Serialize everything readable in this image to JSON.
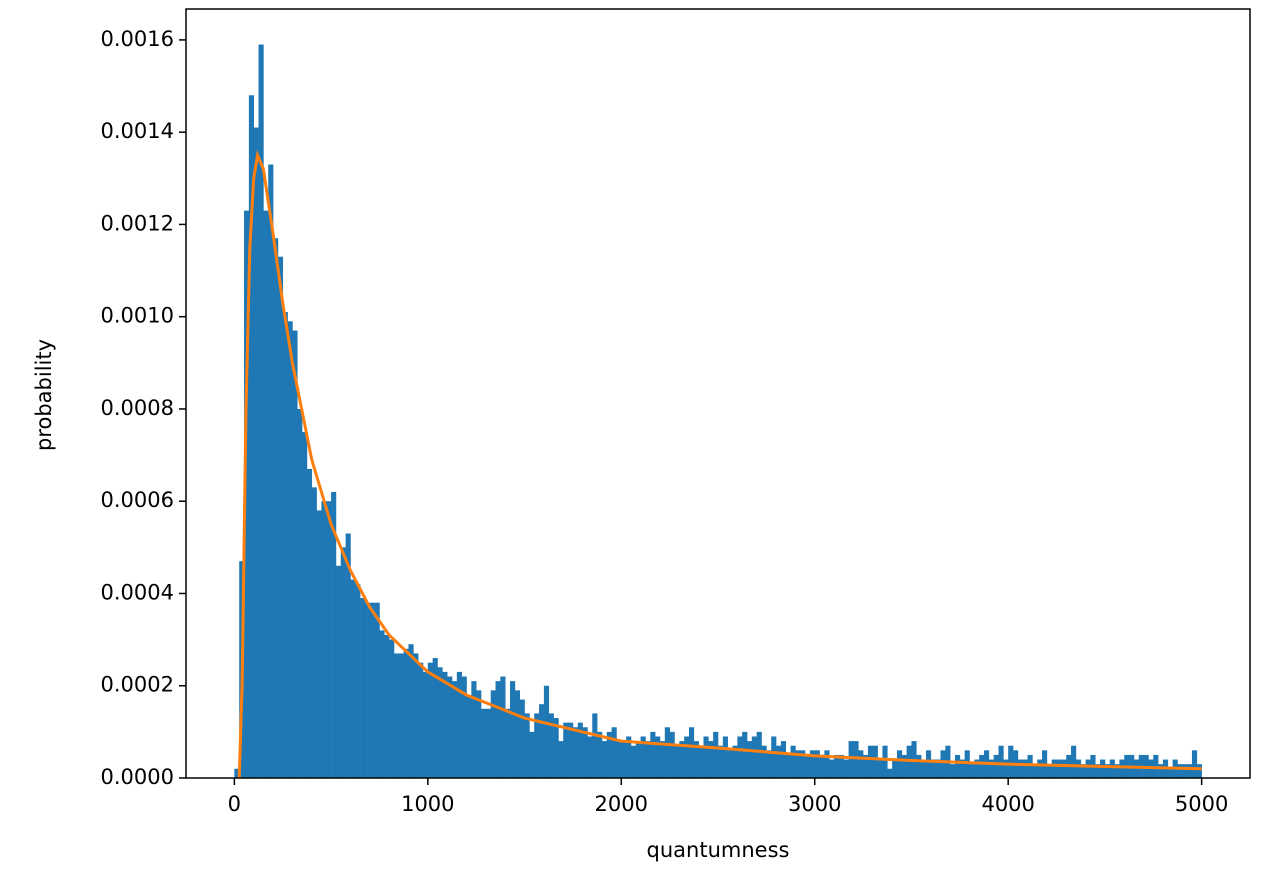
{
  "chart_data": {
    "type": "histogram",
    "xlabel": "quantumness",
    "ylabel": "probability",
    "color": "#1f77b4",
    "bins": [
      0,
      25,
      50,
      75,
      100,
      125,
      150,
      175,
      200,
      225,
      250,
      275,
      300,
      325,
      350,
      375,
      400,
      425,
      450,
      475,
      500,
      525,
      550,
      575,
      600,
      625,
      650,
      675,
      700,
      725,
      750,
      775,
      800,
      825,
      850,
      875,
      900,
      925,
      950,
      975,
      1000,
      1025,
      1050,
      1075,
      1100,
      1125,
      1150,
      1175,
      1200,
      1225,
      1250,
      1275,
      1300,
      1325,
      1350,
      1375,
      1400,
      1425,
      1450,
      1475,
      1500,
      1525,
      1550,
      1575,
      1600,
      1625,
      1650,
      1675,
      1700,
      1725,
      1750,
      1775,
      1800,
      1825,
      1850,
      1875,
      1900,
      1925,
      1950,
      1975,
      2000,
      2025,
      2050,
      2075,
      2100,
      2125,
      2150,
      2175,
      2200,
      2225,
      2250,
      2275,
      2300,
      2325,
      2350,
      2375,
      2400,
      2425,
      2450,
      2475,
      2500,
      2525,
      2550,
      2575,
      2600,
      2625,
      2650,
      2675,
      2700,
      2725,
      2750,
      2775,
      2800,
      2825,
      2850,
      2875,
      2900,
      2925,
      2950,
      2975,
      3000,
      3025,
      3050,
      3075,
      3100,
      3125,
      3150,
      3175,
      3200,
      3225,
      3250,
      3275,
      3300,
      3325,
      3350,
      3375,
      3400,
      3425,
      3450,
      3475,
      3500,
      3525,
      3550,
      3575,
      3600,
      3625,
      3650,
      3675,
      3700,
      3725,
      3750,
      3775,
      3800,
      3825,
      3850,
      3875,
      3900,
      3925,
      3950,
      3975,
      4000,
      4025,
      4050,
      4075,
      4100,
      4125,
      4150,
      4175,
      4200,
      4225,
      4250,
      4275,
      4300,
      4325,
      4350,
      4375,
      4400,
      4425,
      4450,
      4475,
      4500,
      4525,
      4550,
      4575,
      4600,
      4625,
      4650,
      4675,
      4700,
      4725,
      4750,
      4775,
      4800,
      4825,
      4850,
      4875,
      4900,
      4925,
      4950,
      4975,
      5000
    ],
    "values": [
      2e-05,
      0.00047,
      0.00123,
      0.00148,
      0.00141,
      0.00159,
      0.00123,
      0.00133,
      0.00117,
      0.00113,
      0.00101,
      0.00099,
      0.00097,
      0.0008,
      0.00075,
      0.00067,
      0.00063,
      0.00058,
      0.0006,
      0.0006,
      0.00062,
      0.00046,
      0.0005,
      0.00053,
      0.00043,
      0.00042,
      0.00039,
      0.00038,
      0.00038,
      0.00038,
      0.00032,
      0.00031,
      0.0003,
      0.00027,
      0.00027,
      0.00028,
      0.00029,
      0.00027,
      0.00025,
      0.00023,
      0.00025,
      0.00026,
      0.00024,
      0.00023,
      0.00022,
      0.00021,
      0.00023,
      0.00022,
      0.00018,
      0.00021,
      0.00019,
      0.00015,
      0.00015,
      0.00019,
      0.00021,
      0.00022,
      0.00015,
      0.00021,
      0.00019,
      0.00017,
      0.00014,
      0.0001,
      0.00014,
      0.00016,
      0.0002,
      0.00014,
      0.00013,
      8e-05,
      0.00012,
      0.00012,
      0.00011,
      0.00012,
      0.00011,
      9e-05,
      0.00014,
      0.0001,
      8e-05,
      0.0001,
      0.00011,
      8e-05,
      8e-05,
      9e-05,
      7e-05,
      8e-05,
      9e-05,
      8e-05,
      0.0001,
      9e-05,
      8e-05,
      0.00011,
      0.0001,
      7e-05,
      8e-05,
      9e-05,
      0.00011,
      8e-05,
      7e-05,
      9e-05,
      8e-05,
      0.0001,
      7e-05,
      9e-05,
      6e-05,
      7e-05,
      9e-05,
      0.0001,
      8e-05,
      9e-05,
      0.0001,
      7e-05,
      6e-05,
      9e-05,
      7e-05,
      8e-05,
      5e-05,
      7e-05,
      6e-05,
      6e-05,
      5e-05,
      6e-05,
      6e-05,
      5e-05,
      6e-05,
      4e-05,
      5e-05,
      5e-05,
      4e-05,
      8e-05,
      8e-05,
      6e-05,
      5e-05,
      7e-05,
      7e-05,
      4e-05,
      7e-05,
      2e-05,
      4e-05,
      6e-05,
      5e-05,
      7e-05,
      8e-05,
      5e-05,
      4e-05,
      6e-05,
      4e-05,
      4e-05,
      6e-05,
      7e-05,
      3e-05,
      5e-05,
      4e-05,
      6e-05,
      3e-05,
      4e-05,
      5e-05,
      6e-05,
      4e-05,
      5e-05,
      7e-05,
      4e-05,
      7e-05,
      6e-05,
      4e-05,
      4e-05,
      5e-05,
      3e-05,
      4e-05,
      6e-05,
      3e-05,
      4e-05,
      4e-05,
      4e-05,
      5e-05,
      7e-05,
      4e-05,
      3e-05,
      4e-05,
      5e-05,
      3e-05,
      4e-05,
      3e-05,
      4e-05,
      3e-05,
      4e-05,
      5e-05,
      5e-05,
      4e-05,
      5e-05,
      5e-05,
      4e-05,
      5e-05,
      3e-05,
      4e-05,
      2e-05,
      4e-05,
      3e-05,
      3e-05,
      3e-05,
      6e-05,
      3e-05
    ],
    "curve": {
      "color": "#ff7f0e",
      "x": [
        25,
        40,
        60,
        80,
        100,
        120,
        150,
        200,
        250,
        300,
        400,
        500,
        600,
        700,
        800,
        1000,
        1200,
        1500,
        2000,
        2500,
        3000,
        3500,
        4000,
        4500,
        5000
      ],
      "values": [
        0,
        0.0002,
        0.0008,
        0.00115,
        0.0013,
        0.00135,
        0.00132,
        0.00118,
        0.00103,
        0.0009,
        0.00069,
        0.00055,
        0.00045,
        0.00037,
        0.00031,
        0.00023,
        0.00018,
        0.00013,
        8e-05,
        6.5e-05,
        4.8e-05,
        3.8e-05,
        3e-05,
        2.5e-05,
        2e-05
      ]
    },
    "xlim": [
      -250,
      5250
    ],
    "ylim": [
      0,
      0.001667
    ],
    "xticks": [
      0,
      1000,
      2000,
      3000,
      4000,
      5000
    ],
    "yticks": [
      {
        "value": 0,
        "label": "0.0000"
      },
      {
        "value": 0.0002,
        "label": "0.0002"
      },
      {
        "value": 0.0004,
        "label": "0.0004"
      },
      {
        "value": 0.0006,
        "label": "0.0006"
      },
      {
        "value": 0.0008,
        "label": "0.0008"
      },
      {
        "value": 0.001,
        "label": "0.0010"
      },
      {
        "value": 0.0012,
        "label": "0.0012"
      },
      {
        "value": 0.0014,
        "label": "0.0014"
      },
      {
        "value": 0.0016,
        "label": "0.0016"
      }
    ]
  }
}
